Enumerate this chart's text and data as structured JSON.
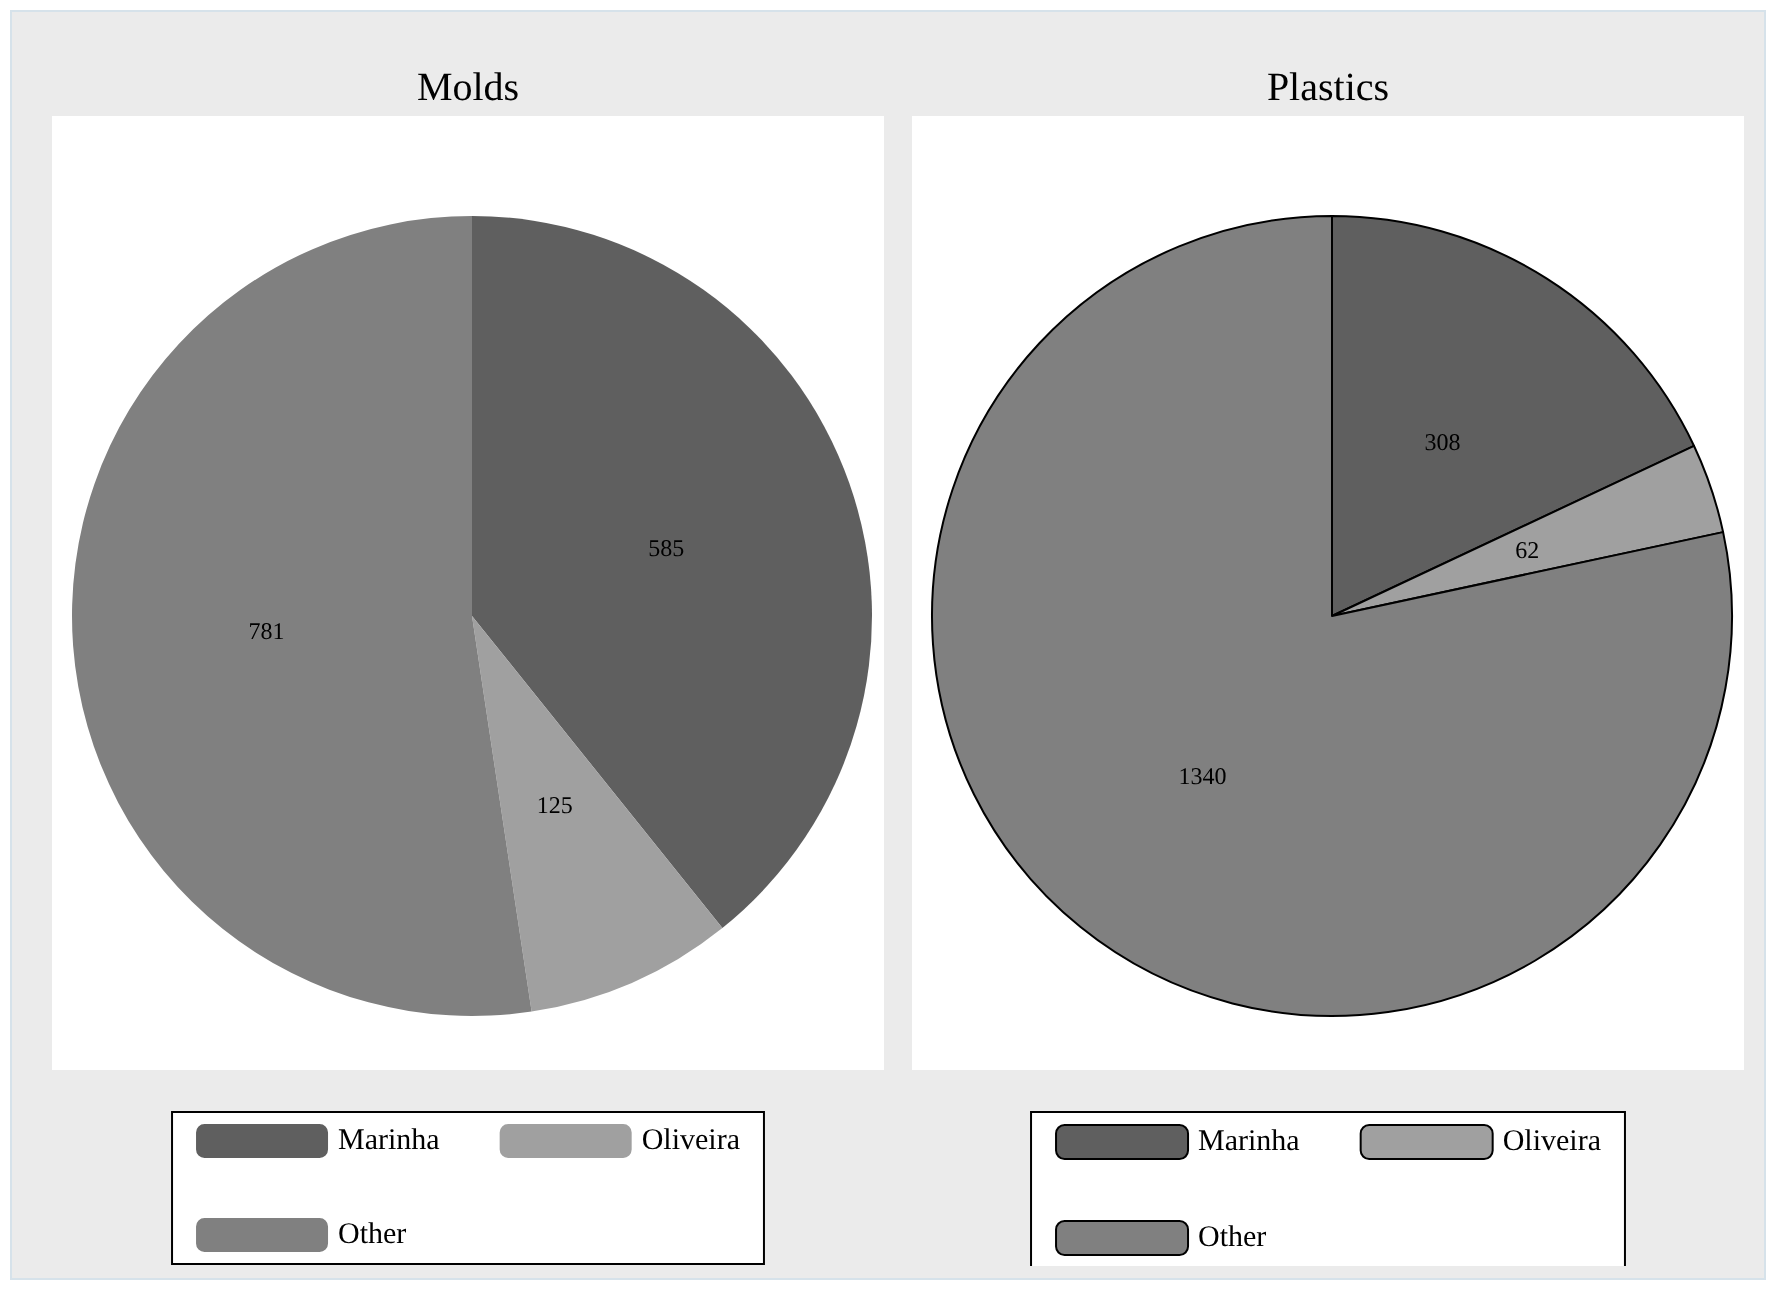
{
  "chart_data": [
    {
      "type": "pie",
      "title": "Molds",
      "categories": [
        "Marinha",
        "Oliveira",
        "Other"
      ],
      "values": [
        585,
        125,
        781
      ],
      "colors": [
        "#5f5f5f",
        "#a0a0a0",
        "#808080"
      ],
      "data_labels": true,
      "legend": "bottom"
    },
    {
      "type": "pie",
      "title": "Plastics",
      "categories": [
        "Marinha",
        "Oliveira",
        "Other"
      ],
      "values": [
        308,
        62,
        1340
      ],
      "colors": [
        "#5f5f5f",
        "#a0a0a0",
        "#808080"
      ],
      "data_labels": true,
      "legend": "bottom"
    }
  ]
}
